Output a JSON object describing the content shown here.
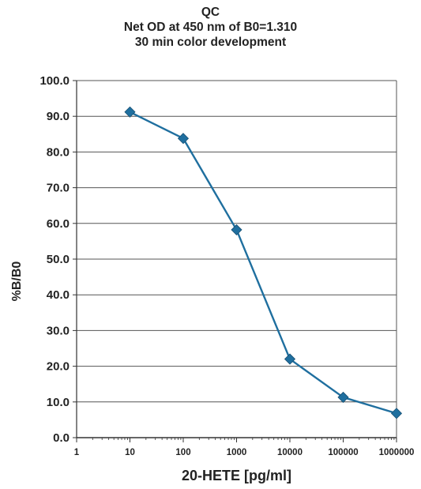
{
  "chart_data": {
    "type": "line",
    "title": "QC",
    "subtitle_lines": [
      "Net OD at 450 nm of B0=1.310",
      "30 min color development"
    ],
    "xlabel": "20-HETE [pg/ml]",
    "ylabel": "%B/B0",
    "x_scale": "log",
    "xlim": [
      1,
      1000000
    ],
    "ylim": [
      0,
      100
    ],
    "x_tick_labels": [
      "1",
      "10",
      "100",
      "1000",
      "10000",
      "100000",
      "1000000"
    ],
    "y_tick_labels": [
      "0.0",
      "10.0",
      "20.0",
      "30.0",
      "40.0",
      "50.0",
      "60.0",
      "70.0",
      "80.0",
      "90.0",
      "100.0"
    ],
    "grid": "horizontal",
    "line_color": "#1f6f9f",
    "marker": "diamond",
    "series": [
      {
        "x": [
          10,
          100,
          1000,
          10000,
          100000,
          1000000
        ],
        "y": [
          91.2,
          83.8,
          58.2,
          22.0,
          11.3,
          6.8
        ]
      }
    ]
  }
}
